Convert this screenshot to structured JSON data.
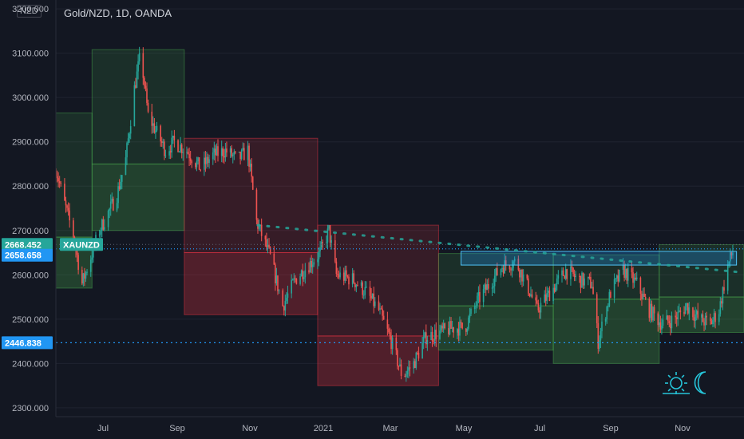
{
  "header": {
    "title": "Gold/NZD, 1D, OANDA",
    "currency": "NZD"
  },
  "markers": {
    "price_label": "2668.452",
    "symbol_label": "XAUNZD",
    "level_label": "2658.658",
    "support_label": "2446.838"
  },
  "colors": {
    "background": "#131722",
    "up": "#26a69a",
    "down": "#ef5350",
    "green_zone": "#4caf50",
    "red_zone": "#f23645",
    "level_box": "#2196f3",
    "watermark": "#26c6da"
  },
  "watermark_icons": [
    "sun-icon",
    "moon-icon"
  ],
  "chart_data": {
    "type": "candlestick",
    "ylim": [
      2280,
      3220
    ],
    "yticks": [
      2300,
      2400,
      2500,
      2600,
      2700,
      2800,
      2900,
      3000,
      3100,
      3200
    ],
    "ytick_labels": [
      "2300.000",
      "2400.000",
      "2500.000",
      "2600.000",
      "2700.000",
      "2800.000",
      "2900.000",
      "3000.000",
      "3100.000",
      "3200.000"
    ],
    "xticks": [
      "Jul",
      "Sep",
      "Nov",
      "2021",
      "Mar",
      "May",
      "Jul",
      "Sep",
      "Nov"
    ],
    "x_range": [
      "2020-06-01",
      "2021-12-05"
    ],
    "price_path": [
      [
        "2020-06-01",
        2840
      ],
      [
        "2020-06-08",
        2760
      ],
      [
        "2020-06-15",
        2690
      ],
      [
        "2020-06-22",
        2580
      ],
      [
        "2020-06-29",
        2640
      ],
      [
        "2020-07-06",
        2700
      ],
      [
        "2020-07-13",
        2740
      ],
      [
        "2020-07-20",
        2780
      ],
      [
        "2020-07-27",
        2860
      ],
      [
        "2020-08-03",
        3020
      ],
      [
        "2020-08-08",
        3100
      ],
      [
        "2020-08-14",
        2960
      ],
      [
        "2020-08-21",
        2920
      ],
      [
        "2020-08-28",
        2880
      ],
      [
        "2020-09-04",
        2900
      ],
      [
        "2020-09-14",
        2880
      ],
      [
        "2020-09-25",
        2840
      ],
      [
        "2020-10-05",
        2870
      ],
      [
        "2020-10-15",
        2880
      ],
      [
        "2020-10-25",
        2860
      ],
      [
        "2020-11-02",
        2880
      ],
      [
        "2020-11-09",
        2720
      ],
      [
        "2020-11-20",
        2640
      ],
      [
        "2020-11-30",
        2530
      ],
      [
        "2020-12-10",
        2590
      ],
      [
        "2020-12-20",
        2620
      ],
      [
        "2020-12-30",
        2650
      ],
      [
        "2021-01-06",
        2700
      ],
      [
        "2021-01-12",
        2600
      ],
      [
        "2021-01-25",
        2590
      ],
      [
        "2021-02-05",
        2560
      ],
      [
        "2021-02-15",
        2520
      ],
      [
        "2021-02-25",
        2450
      ],
      [
        "2021-03-06",
        2370
      ],
      [
        "2021-03-15",
        2400
      ],
      [
        "2021-03-25",
        2460
      ],
      [
        "2021-04-05",
        2470
      ],
      [
        "2021-04-15",
        2480
      ],
      [
        "2021-04-25",
        2480
      ],
      [
        "2021-05-05",
        2540
      ],
      [
        "2021-05-15",
        2580
      ],
      [
        "2021-05-25",
        2620
      ],
      [
        "2021-06-05",
        2630
      ],
      [
        "2021-06-15",
        2570
      ],
      [
        "2021-06-22",
        2520
      ],
      [
        "2021-07-05",
        2570
      ],
      [
        "2021-07-15",
        2610
      ],
      [
        "2021-07-25",
        2590
      ],
      [
        "2021-08-05",
        2580
      ],
      [
        "2021-08-10",
        2450
      ],
      [
        "2021-08-20",
        2560
      ],
      [
        "2021-08-30",
        2610
      ],
      [
        "2021-09-10",
        2580
      ],
      [
        "2021-09-20",
        2520
      ],
      [
        "2021-09-30",
        2490
      ],
      [
        "2021-10-10",
        2500
      ],
      [
        "2021-10-20",
        2530
      ],
      [
        "2021-10-30",
        2500
      ],
      [
        "2021-11-08",
        2490
      ],
      [
        "2021-11-15",
        2520
      ],
      [
        "2021-11-22",
        2620
      ],
      [
        "2021-11-28",
        2668
      ]
    ],
    "zones": [
      {
        "color": "green",
        "start": "2020-06-01",
        "end": "2020-06-30",
        "high": 2965,
        "low": 2570,
        "split": 2685
      },
      {
        "color": "green",
        "start": "2020-06-30",
        "end": "2020-09-12",
        "high": 3108,
        "low": 2700,
        "split": 2850
      },
      {
        "color": "red",
        "start": "2020-09-12",
        "end": "2020-12-28",
        "high": 2908,
        "low": 2510,
        "split": 2650
      },
      {
        "color": "red",
        "start": "2020-12-28",
        "end": "2021-04-04",
        "high": 2712,
        "low": 2350,
        "split": 2462
      },
      {
        "color": "green",
        "start": "2021-04-04",
        "end": "2021-07-05",
        "high": 2648,
        "low": 2430,
        "split": 2530
      },
      {
        "color": "green",
        "start": "2021-07-05",
        "end": "2021-09-28",
        "high": 2645,
        "low": 2400,
        "split": 2545
      },
      {
        "color": "green",
        "start": "2021-09-28",
        "end": "2021-12-05",
        "high": 2668,
        "low": 2470,
        "split": 2550
      }
    ],
    "level_box": {
      "start": "2021-04-22",
      "end": "2021-11-29",
      "high": 2653,
      "low": 2622
    },
    "support_level": 2446.838,
    "price_level": 2668.452,
    "marked_level": 2658.658,
    "trendline": [
      [
        "2020-11-10",
        2712
      ],
      [
        "2021-12-05",
        2605
      ]
    ]
  }
}
